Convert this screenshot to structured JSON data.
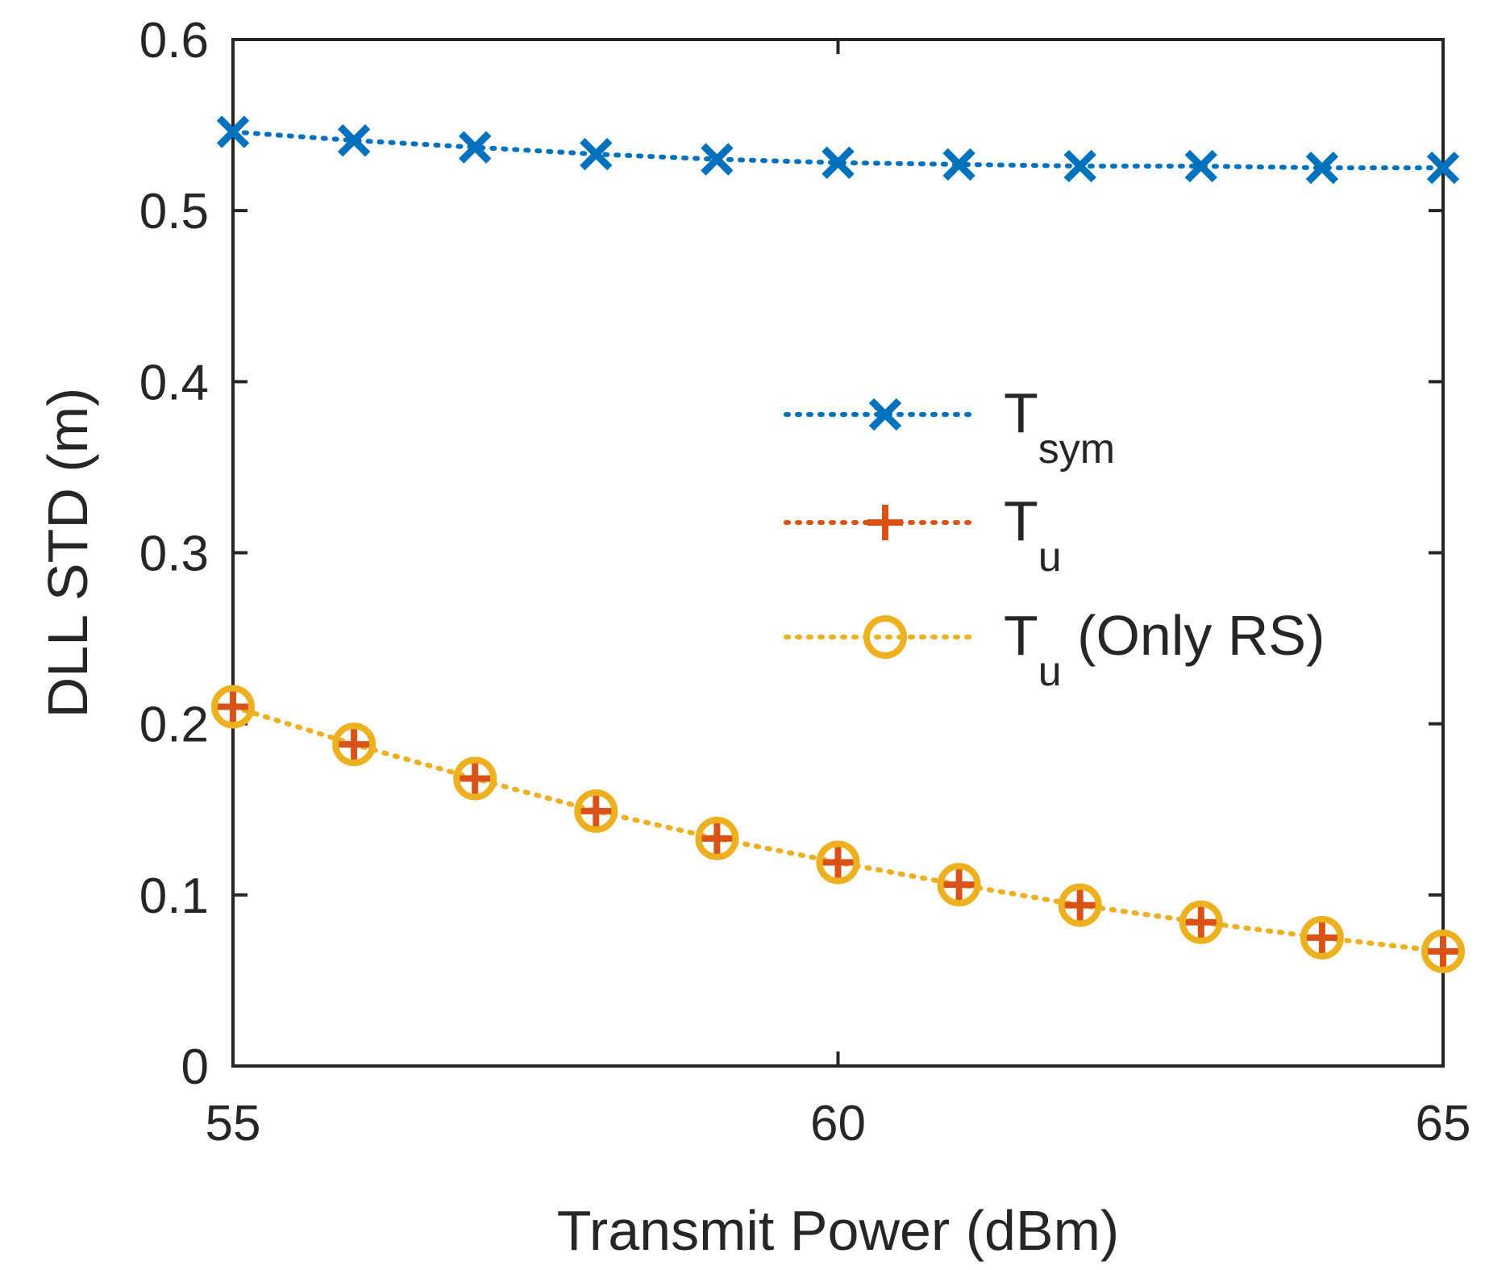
{
  "chart_data": {
    "type": "line",
    "title": "",
    "xlabel": "Transmit Power (dBm)",
    "ylabel": "DLL STD (m)",
    "xlim": [
      55,
      65
    ],
    "ylim": [
      0,
      0.6
    ],
    "xticks": [
      55,
      60,
      65
    ],
    "xtick_labels": [
      "55",
      "60",
      "65"
    ],
    "yticks": [
      0,
      0.1,
      0.2,
      0.3,
      0.4,
      0.5,
      0.6
    ],
    "ytick_labels": [
      "0",
      "0.1",
      "0.2",
      "0.3",
      "0.4",
      "0.5",
      "0.6"
    ],
    "grid": false,
    "legend_position": "center-right",
    "x": [
      55,
      56,
      57,
      58,
      59,
      60,
      61,
      62,
      63,
      64,
      65
    ],
    "series": [
      {
        "name": "T_sym",
        "legend_main": "T",
        "legend_sub": "sym",
        "legend_rest": "",
        "marker": "x",
        "color": "#0072BD",
        "line_style": "dotted",
        "values": [
          0.546,
          0.541,
          0.537,
          0.533,
          0.53,
          0.528,
          0.527,
          0.526,
          0.526,
          0.525,
          0.525
        ]
      },
      {
        "name": "T_u",
        "legend_main": "T",
        "legend_sub": "u",
        "legend_rest": "",
        "marker": "+",
        "color": "#D95319",
        "line_style": "dotted",
        "values": [
          0.21,
          0.188,
          0.168,
          0.149,
          0.133,
          0.119,
          0.106,
          0.094,
          0.084,
          0.075,
          0.067
        ]
      },
      {
        "name": "T_u (Only RS)",
        "legend_main": "T",
        "legend_sub": "u",
        "legend_rest": " (Only RS)",
        "marker": "o",
        "color": "#EDB120",
        "line_style": "dotted",
        "values": [
          0.21,
          0.188,
          0.168,
          0.149,
          0.133,
          0.119,
          0.106,
          0.094,
          0.084,
          0.075,
          0.067
        ]
      }
    ]
  }
}
